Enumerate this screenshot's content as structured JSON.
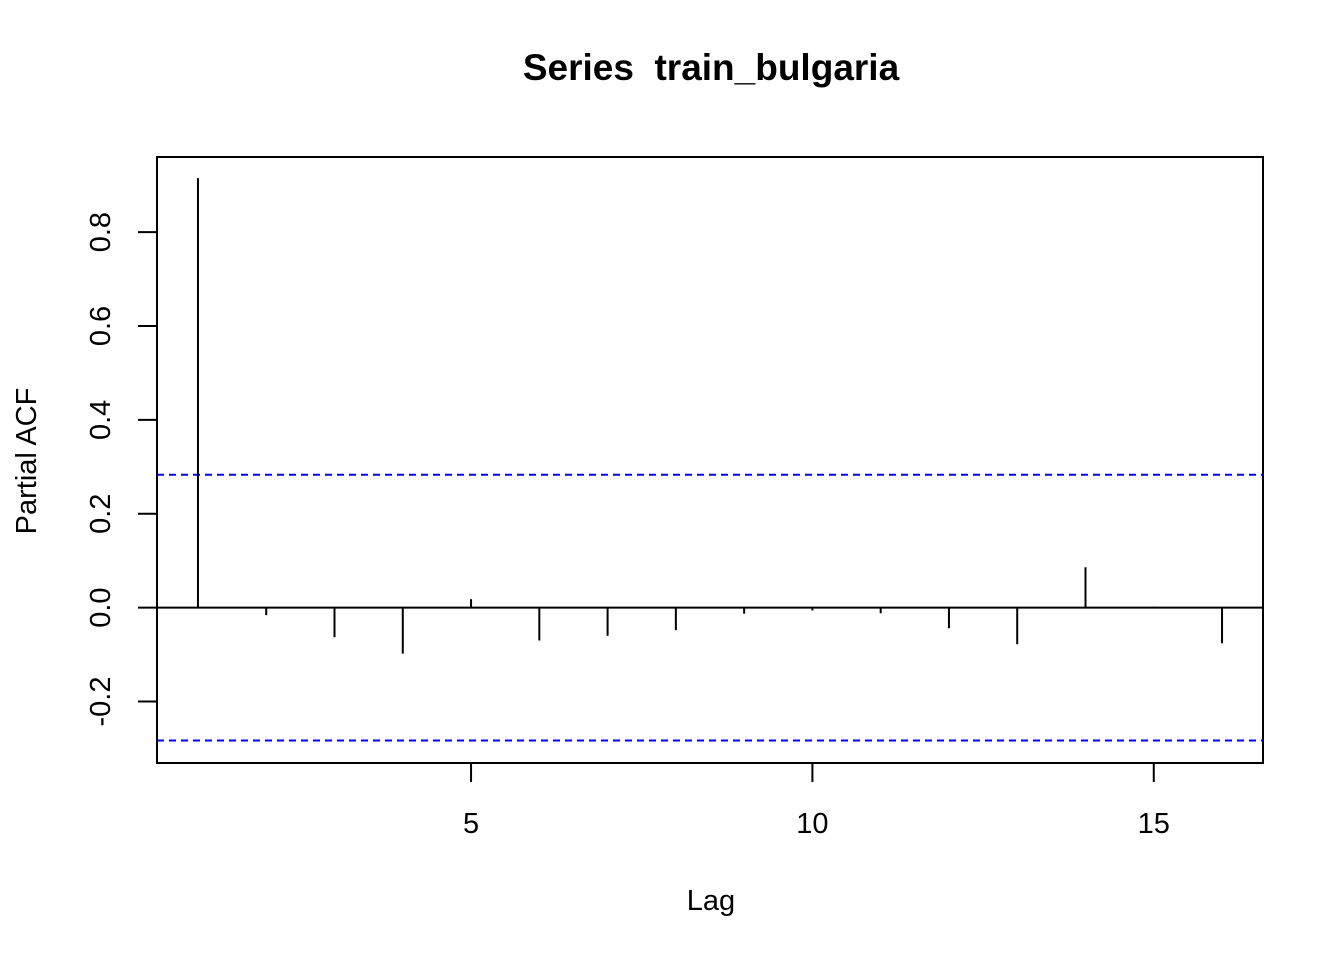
{
  "chart_data": {
    "type": "bar",
    "title": "Series  train_bulgaria",
    "xlabel": "Lag",
    "ylabel": "Partial ACF",
    "xlim": [
      0.4,
      16.6
    ],
    "ylim": [
      -0.331,
      0.96
    ],
    "x_ticks": [
      {
        "value": 5,
        "label": "5"
      },
      {
        "value": 10,
        "label": "10"
      },
      {
        "value": 15,
        "label": "15"
      }
    ],
    "y_ticks": [
      {
        "value": -0.2,
        "label": "-0.2"
      },
      {
        "value": 0.0,
        "label": "0.0"
      },
      {
        "value": 0.2,
        "label": "0.2"
      },
      {
        "value": 0.4,
        "label": "0.4"
      },
      {
        "value": 0.6,
        "label": "0.6"
      },
      {
        "value": 0.8,
        "label": "0.8"
      }
    ],
    "lags": [
      1,
      2,
      3,
      4,
      5,
      6,
      7,
      8,
      9,
      10,
      11,
      12,
      13,
      14,
      15,
      16
    ],
    "values": [
      0.915,
      -0.016,
      -0.063,
      -0.098,
      0.018,
      -0.07,
      -0.06,
      -0.048,
      -0.013,
      -0.006,
      -0.012,
      -0.044,
      -0.078,
      0.086,
      0.002,
      -0.076
    ],
    "confidence_bounds": [
      0.283,
      -0.283
    ],
    "colors": {
      "bar": "#000000",
      "confidence": "#0000ff",
      "axis": "#000000"
    },
    "grid": false
  }
}
